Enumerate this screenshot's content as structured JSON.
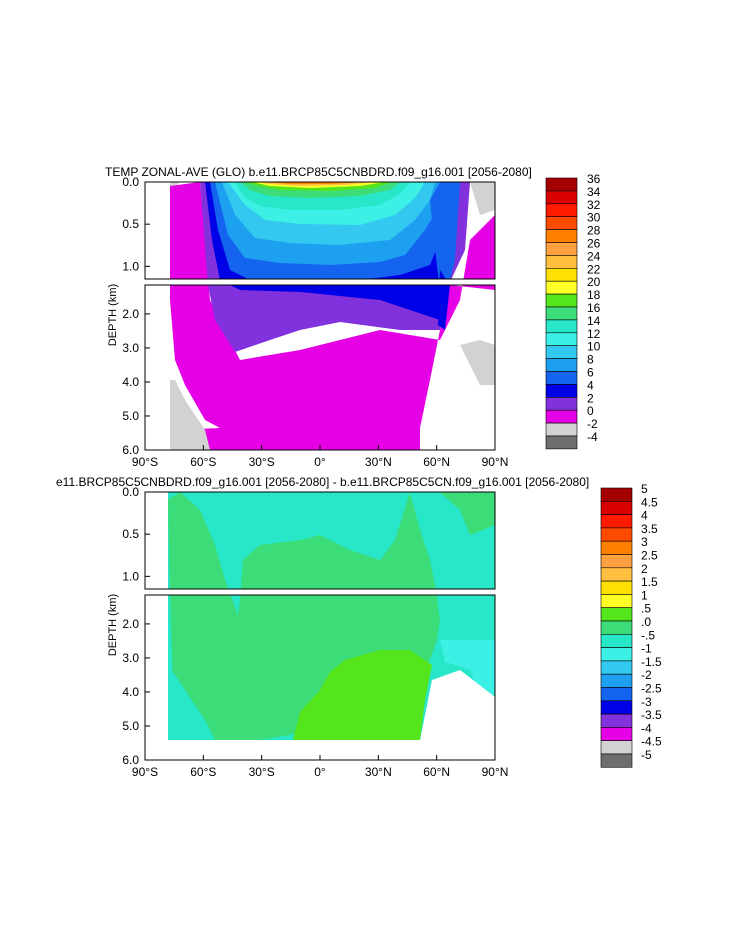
{
  "chart_data": [
    {
      "type": "heatmap",
      "title": "TEMP ZONAL-AVE (GLO) b.e11.BRCP85C5CNBDRD.f09_g16.001 [2056-2080]",
      "ylabel": "DEPTH (km)",
      "x_ticks": [
        "90°S",
        "60°S",
        "30°S",
        "0°",
        "30°N",
        "60°N",
        "90°N"
      ],
      "y_ticks_upper": [
        "0.0",
        "0.5",
        "1.0"
      ],
      "y_ticks_lower": [
        "2.0",
        "3.0",
        "4.0",
        "5.0",
        "6.0"
      ],
      "xlim": [
        -90,
        90
      ],
      "ylim_km": [
        6.0,
        0.0
      ],
      "colorbar_labels": [
        "36",
        "34",
        "32",
        "30",
        "28",
        "26",
        "24",
        "22",
        "20",
        "18",
        "16",
        "14",
        "12",
        "10",
        "8",
        "6",
        "4",
        "2",
        "0",
        "-2",
        "-4"
      ],
      "colorbar_colors": [
        "#a50000",
        "#d80000",
        "#ff1a00",
        "#ff4b00",
        "#ff8000",
        "#ffa040",
        "#ffc040",
        "#ffe000",
        "#ffff28",
        "#54e51c",
        "#3cdc78",
        "#28e6c8",
        "#3cf0e6",
        "#32c8f0",
        "#1ea0f0",
        "#1464f0",
        "#0000e6",
        "#8232dc",
        "#e600e6",
        "#d2d2d2",
        "#6e6e6e"
      ]
    },
    {
      "type": "heatmap",
      "title": "e11.BRCP85C5CNBDRD.f09_g16.001 [2056-2080] - b.e11.BRCP85C5CN.f09_g16.001 [2056-2080]",
      "ylabel": "DEPTH (km)",
      "x_ticks": [
        "90°S",
        "60°S",
        "30°S",
        "0°",
        "30°N",
        "60°N",
        "90°N"
      ],
      "y_ticks_upper": [
        "0.0",
        "0.5",
        "1.0"
      ],
      "y_ticks_lower": [
        "2.0",
        "3.0",
        "4.0",
        "5.0",
        "6.0"
      ],
      "xlim": [
        -90,
        90
      ],
      "ylim_km": [
        6.0,
        0.0
      ],
      "colorbar_labels": [
        "5",
        "4.5",
        "4",
        "3.5",
        "3",
        "2.5",
        "2",
        "1.5",
        "1",
        ".5",
        ".0",
        "-.5",
        "-1",
        "-1.5",
        "-2",
        "-2.5",
        "-3",
        "-3.5",
        "-4",
        "-4.5",
        "-5"
      ],
      "colorbar_colors": [
        "#a50000",
        "#d80000",
        "#ff1a00",
        "#ff4b00",
        "#ff8000",
        "#ffa040",
        "#ffc040",
        "#ffe000",
        "#ffff28",
        "#54e51c",
        "#3cdc78",
        "#28e6c8",
        "#3cf0e6",
        "#32c8f0",
        "#1ea0f0",
        "#1464f0",
        "#0000e6",
        "#8232dc",
        "#e600e6",
        "#d2d2d2",
        "#6e6e6e"
      ]
    }
  ]
}
